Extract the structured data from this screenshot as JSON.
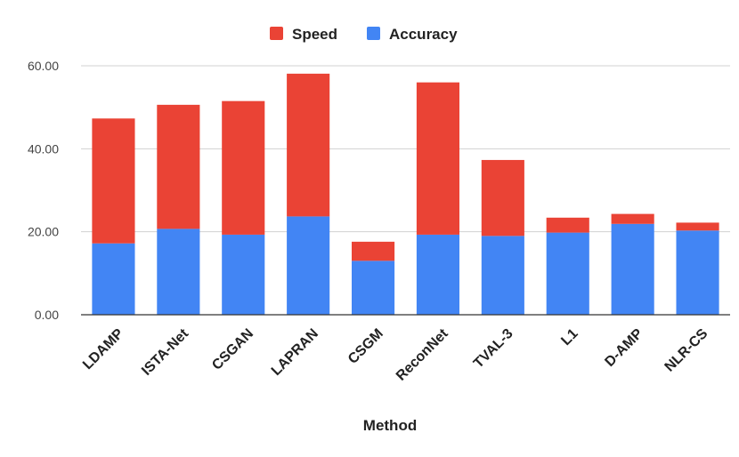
{
  "chart_data": {
    "type": "bar",
    "stacked": true,
    "xlabel": "Method",
    "ylabel": "",
    "ylim": [
      0,
      60
    ],
    "y_ticks": [
      "0.00",
      "20.00",
      "40.00",
      "60.00"
    ],
    "grid": true,
    "legend_position": "top",
    "categories": [
      "LDAMP",
      "ISTA-Net",
      "CSGAN",
      "LAPRAN",
      "CSGM",
      "ReconNet",
      "TVAL-3",
      "L1",
      "D-AMP",
      "NLR-CS"
    ],
    "series": [
      {
        "name": "Accuracy",
        "color": "#4285f4",
        "values": [
          17.2,
          20.7,
          19.3,
          23.7,
          13.0,
          19.3,
          19.0,
          19.8,
          21.9,
          20.3
        ]
      },
      {
        "name": "Speed",
        "color": "#ea4335",
        "values": [
          30.1,
          29.9,
          32.2,
          34.4,
          4.6,
          36.7,
          18.3,
          3.6,
          2.4,
          1.9
        ]
      }
    ],
    "legend_order": [
      "Speed",
      "Accuracy"
    ]
  }
}
